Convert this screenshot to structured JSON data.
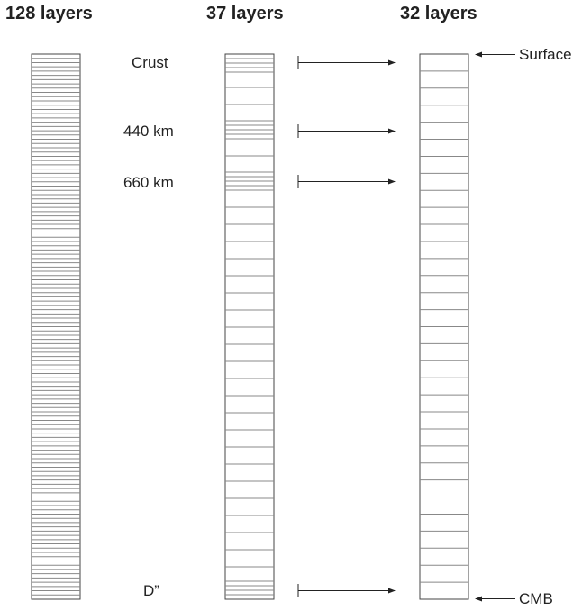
{
  "titles": {
    "left": "128 layers",
    "middle": "37 layers",
    "right": "32 layers"
  },
  "columns": [
    {
      "layer_count": 128,
      "title_key": "left"
    },
    {
      "layer_count": 37,
      "title_key": "middle"
    },
    {
      "layer_count": 32,
      "title_key": "right"
    }
  ],
  "depth_labels": {
    "crust": "Crust",
    "d440": "440 km",
    "d660": "660 km",
    "dpp": "D”"
  },
  "boundary_labels": {
    "surface": "Surface",
    "cmb": "CMB"
  },
  "colors": {
    "line": "#444444",
    "thin_line": "#888888"
  }
}
